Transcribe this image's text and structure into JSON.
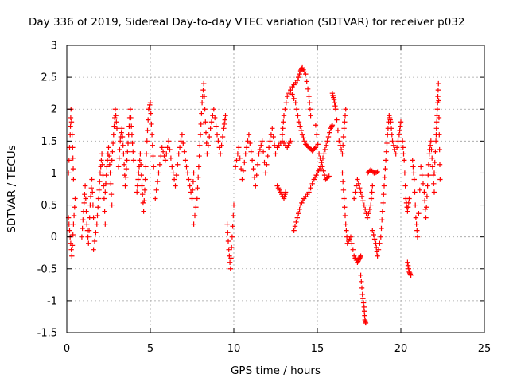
{
  "chart_data": {
    "type": "scatter",
    "title": "Day 336 of 2019, Sidereal Day-to-day VTEC variation (SDTVAR) for receiver p032",
    "xlabel": "GPS time / hours",
    "ylabel": "SDTVAR / TECUs",
    "xlim": [
      0,
      25
    ],
    "ylim": [
      -1.5,
      3
    ],
    "xticks": [
      0,
      5,
      10,
      15,
      20,
      25
    ],
    "yticks": [
      -1.5,
      -1,
      -0.5,
      0,
      0.5,
      1,
      1.5,
      2,
      2.5,
      3
    ],
    "xtick_labels": [
      "0",
      "5",
      "10",
      "15",
      "20",
      "25"
    ],
    "ytick_labels": [
      "-1.5",
      "-1",
      "-0.5",
      "0",
      "0.5",
      "1",
      "1.5",
      "2",
      "2.5",
      "3"
    ],
    "grid": true,
    "marker": "+",
    "color": "#ff0000",
    "series": [
      {
        "name": "SDTVAR",
        "segments": [
          [
            [
              0.1,
              1.0
            ],
            [
              0.2,
              1.6
            ],
            [
              0.25,
              2.0
            ],
            [
              0.35,
              1.4
            ],
            [
              0.4,
              0.9
            ]
          ],
          [
            [
              0.1,
              0.3
            ],
            [
              0.2,
              0.0
            ],
            [
              0.3,
              -0.3
            ],
            [
              0.4,
              0.2
            ],
            [
              0.5,
              0.6
            ]
          ],
          [
            [
              0.9,
              0.0
            ],
            [
              1.0,
              0.4
            ],
            [
              1.1,
              0.8
            ],
            [
              1.2,
              0.2
            ],
            [
              1.3,
              -0.1
            ],
            [
              1.4,
              0.5
            ],
            [
              1.5,
              0.9
            ],
            [
              1.6,
              0.3
            ]
          ],
          [
            [
              1.6,
              -0.2
            ],
            [
              1.8,
              0.2
            ],
            [
              1.9,
              0.6
            ],
            [
              2.0,
              1.0
            ],
            [
              2.1,
              1.3
            ],
            [
              2.2,
              0.8
            ],
            [
              2.3,
              0.2
            ]
          ],
          [
            [
              2.3,
              0.7
            ],
            [
              2.4,
              1.1
            ],
            [
              2.5,
              1.4
            ],
            [
              2.6,
              1.0
            ],
            [
              2.7,
              0.5
            ]
          ],
          [
            [
              2.7,
              1.2
            ],
            [
              2.8,
              1.6
            ],
            [
              2.9,
              2.0
            ],
            [
              3.0,
              1.7
            ]
          ],
          [
            [
              3.1,
              1.1
            ],
            [
              3.2,
              1.5
            ],
            [
              3.3,
              1.7
            ],
            [
              3.4,
              1.3
            ],
            [
              3.5,
              0.8
            ],
            [
              3.6,
              1.2
            ],
            [
              3.7,
              1.6
            ],
            [
              3.8,
              2.0
            ],
            [
              3.9,
              1.6
            ],
            [
              4.0,
              1.2
            ]
          ],
          [
            [
              4.2,
              0.7
            ],
            [
              4.3,
              1.0
            ],
            [
              4.4,
              1.3
            ],
            [
              4.5,
              0.8
            ],
            [
              4.6,
              0.4
            ],
            [
              4.7,
              0.9
            ],
            [
              4.8,
              1.5
            ],
            [
              4.9,
              2.0
            ],
            [
              5.0,
              2.1
            ],
            [
              5.1,
              1.6
            ],
            [
              5.2,
              1.1
            ]
          ],
          [
            [
              5.3,
              0.6
            ],
            [
              5.5,
              1.0
            ],
            [
              5.7,
              1.4
            ],
            [
              5.9,
              1.2
            ],
            [
              6.1,
              1.5
            ],
            [
              6.3,
              1.1
            ],
            [
              6.5,
              0.8
            ],
            [
              6.7,
              1.3
            ],
            [
              6.9,
              1.6
            ],
            [
              7.1,
              1.2
            ],
            [
              7.3,
              0.9
            ],
            [
              7.5,
              0.6
            ],
            [
              7.6,
              1.0
            ]
          ],
          [
            [
              7.6,
              0.2
            ],
            [
              7.8,
              0.6
            ],
            [
              7.9,
              1.1
            ],
            [
              8.0,
              1.6
            ],
            [
              8.1,
              2.1
            ],
            [
              8.2,
              2.4
            ],
            [
              8.3,
              1.8
            ],
            [
              8.4,
              1.3
            ],
            [
              8.6,
              1.7
            ],
            [
              8.8,
              2.0
            ],
            [
              9.0,
              1.6
            ],
            [
              9.2,
              1.3
            ],
            [
              9.4,
              1.7
            ],
            [
              9.5,
              1.9
            ]
          ],
          [
            [
              9.6,
              0.2
            ],
            [
              9.7,
              -0.2
            ],
            [
              9.8,
              -0.5
            ],
            [
              9.9,
              0.0
            ],
            [
              10.0,
              0.5
            ]
          ],
          [
            [
              10.1,
              1.1
            ],
            [
              10.3,
              1.4
            ],
            [
              10.5,
              0.9
            ],
            [
              10.7,
              1.3
            ],
            [
              10.9,
              1.6
            ],
            [
              11.1,
              1.2
            ],
            [
              11.3,
              0.8
            ],
            [
              11.5,
              1.3
            ],
            [
              11.7,
              1.5
            ],
            [
              11.9,
              1.0
            ],
            [
              12.1,
              1.4
            ],
            [
              12.3,
              1.7
            ],
            [
              12.5,
              1.3
            ]
          ],
          [
            [
              12.6,
              0.8
            ],
            [
              12.8,
              0.7
            ],
            [
              13.0,
              0.6
            ],
            [
              13.1,
              0.7
            ]
          ],
          [
            [
              12.6,
              1.4
            ],
            [
              12.9,
              1.5
            ],
            [
              13.2,
              1.4
            ],
            [
              13.4,
              1.5
            ]
          ],
          [
            [
              12.9,
              1.6
            ],
            [
              13.0,
              1.9
            ],
            [
              13.2,
              2.2
            ],
            [
              13.5,
              2.35
            ],
            [
              13.8,
              2.45
            ],
            [
              14.0,
              2.6
            ],
            [
              14.1,
              2.65
            ],
            [
              14.3,
              2.55
            ],
            [
              14.5,
              2.2
            ],
            [
              14.6,
              1.9
            ]
          ],
          [
            [
              13.4,
              2.3
            ],
            [
              13.7,
              2.1
            ],
            [
              13.9,
              1.8
            ],
            [
              14.1,
              1.6
            ],
            [
              14.3,
              1.45
            ],
            [
              14.5,
              1.4
            ],
            [
              14.7,
              1.35
            ],
            [
              14.9,
              1.4
            ]
          ],
          [
            [
              13.6,
              0.1
            ],
            [
              13.8,
              0.3
            ],
            [
              14.0,
              0.5
            ],
            [
              14.2,
              0.6
            ],
            [
              14.5,
              0.7
            ],
            [
              14.8,
              0.9
            ],
            [
              15.0,
              1.0
            ],
            [
              15.2,
              1.1
            ],
            [
              15.4,
              1.3
            ],
            [
              15.6,
              1.5
            ],
            [
              15.8,
              1.7
            ],
            [
              15.9,
              1.75
            ]
          ],
          [
            [
              14.9,
              1.75
            ],
            [
              15.1,
              1.3
            ],
            [
              15.3,
              1.1
            ],
            [
              15.5,
              0.9
            ],
            [
              15.7,
              0.95
            ]
          ],
          [
            [
              15.9,
              2.25
            ],
            [
              16.0,
              2.15
            ],
            [
              16.1,
              2.0
            ],
            [
              16.3,
              1.5
            ],
            [
              16.5,
              1.3
            ],
            [
              16.6,
              1.7
            ],
            [
              16.7,
              2.0
            ]
          ],
          [
            [
              16.5,
              1.0
            ],
            [
              16.6,
              0.6
            ],
            [
              16.7,
              0.2
            ],
            [
              16.8,
              -0.1
            ],
            [
              17.0,
              0.0
            ],
            [
              17.2,
              -0.3
            ],
            [
              17.4,
              -0.4
            ],
            [
              17.5,
              -0.35
            ],
            [
              17.6,
              -0.3
            ]
          ],
          [
            [
              17.6,
              -0.6
            ],
            [
              17.7,
              -0.9
            ],
            [
              17.8,
              -1.1
            ],
            [
              17.85,
              -1.3
            ],
            [
              17.9,
              -1.35
            ]
          ],
          [
            [
              17.2,
              0.6
            ],
            [
              17.4,
              0.9
            ],
            [
              17.6,
              0.7
            ],
            [
              17.8,
              0.5
            ],
            [
              18.0,
              0.3
            ],
            [
              18.2,
              0.5
            ],
            [
              18.3,
              0.8
            ]
          ],
          [
            [
              18.0,
              1.0
            ],
            [
              18.2,
              1.05
            ],
            [
              18.4,
              1.0
            ],
            [
              18.6,
              1.02
            ]
          ],
          [
            [
              18.3,
              0.1
            ],
            [
              18.5,
              -0.1
            ],
            [
              18.6,
              -0.3
            ],
            [
              18.8,
              0.0
            ],
            [
              18.9,
              0.4
            ],
            [
              19.0,
              0.8
            ],
            [
              19.1,
              1.2
            ],
            [
              19.2,
              1.6
            ],
            [
              19.3,
              1.9
            ],
            [
              19.4,
              1.8
            ],
            [
              19.5,
              1.5
            ],
            [
              19.7,
              1.3
            ],
            [
              19.9,
              1.6
            ],
            [
              20.0,
              1.8
            ]
          ],
          [
            [
              20.1,
              1.5
            ],
            [
              20.2,
              1.2
            ],
            [
              20.3,
              0.6
            ],
            [
              20.4,
              0.4
            ],
            [
              20.5,
              0.6
            ]
          ],
          [
            [
              20.4,
              -0.4
            ],
            [
              20.5,
              -0.55
            ],
            [
              20.6,
              -0.6
            ]
          ],
          [
            [
              20.7,
              1.2
            ],
            [
              20.8,
              0.9
            ],
            [
              20.9,
              0.3
            ],
            [
              21.0,
              0.0
            ],
            [
              21.2,
              1.1
            ],
            [
              21.4,
              0.7
            ],
            [
              21.5,
              0.3
            ],
            [
              21.6,
              0.8
            ],
            [
              21.7,
              1.3
            ],
            [
              21.8,
              1.5
            ],
            [
              21.9,
              1.1
            ],
            [
              22.0,
              0.7
            ]
          ],
          [
            [
              22.0,
              1.0
            ],
            [
              22.1,
              1.5
            ],
            [
              22.15,
              1.8
            ],
            [
              22.2,
              2.1
            ],
            [
              22.25,
              2.4
            ],
            [
              22.3,
              1.6
            ],
            [
              22.35,
              0.9
            ]
          ]
        ]
      }
    ]
  }
}
